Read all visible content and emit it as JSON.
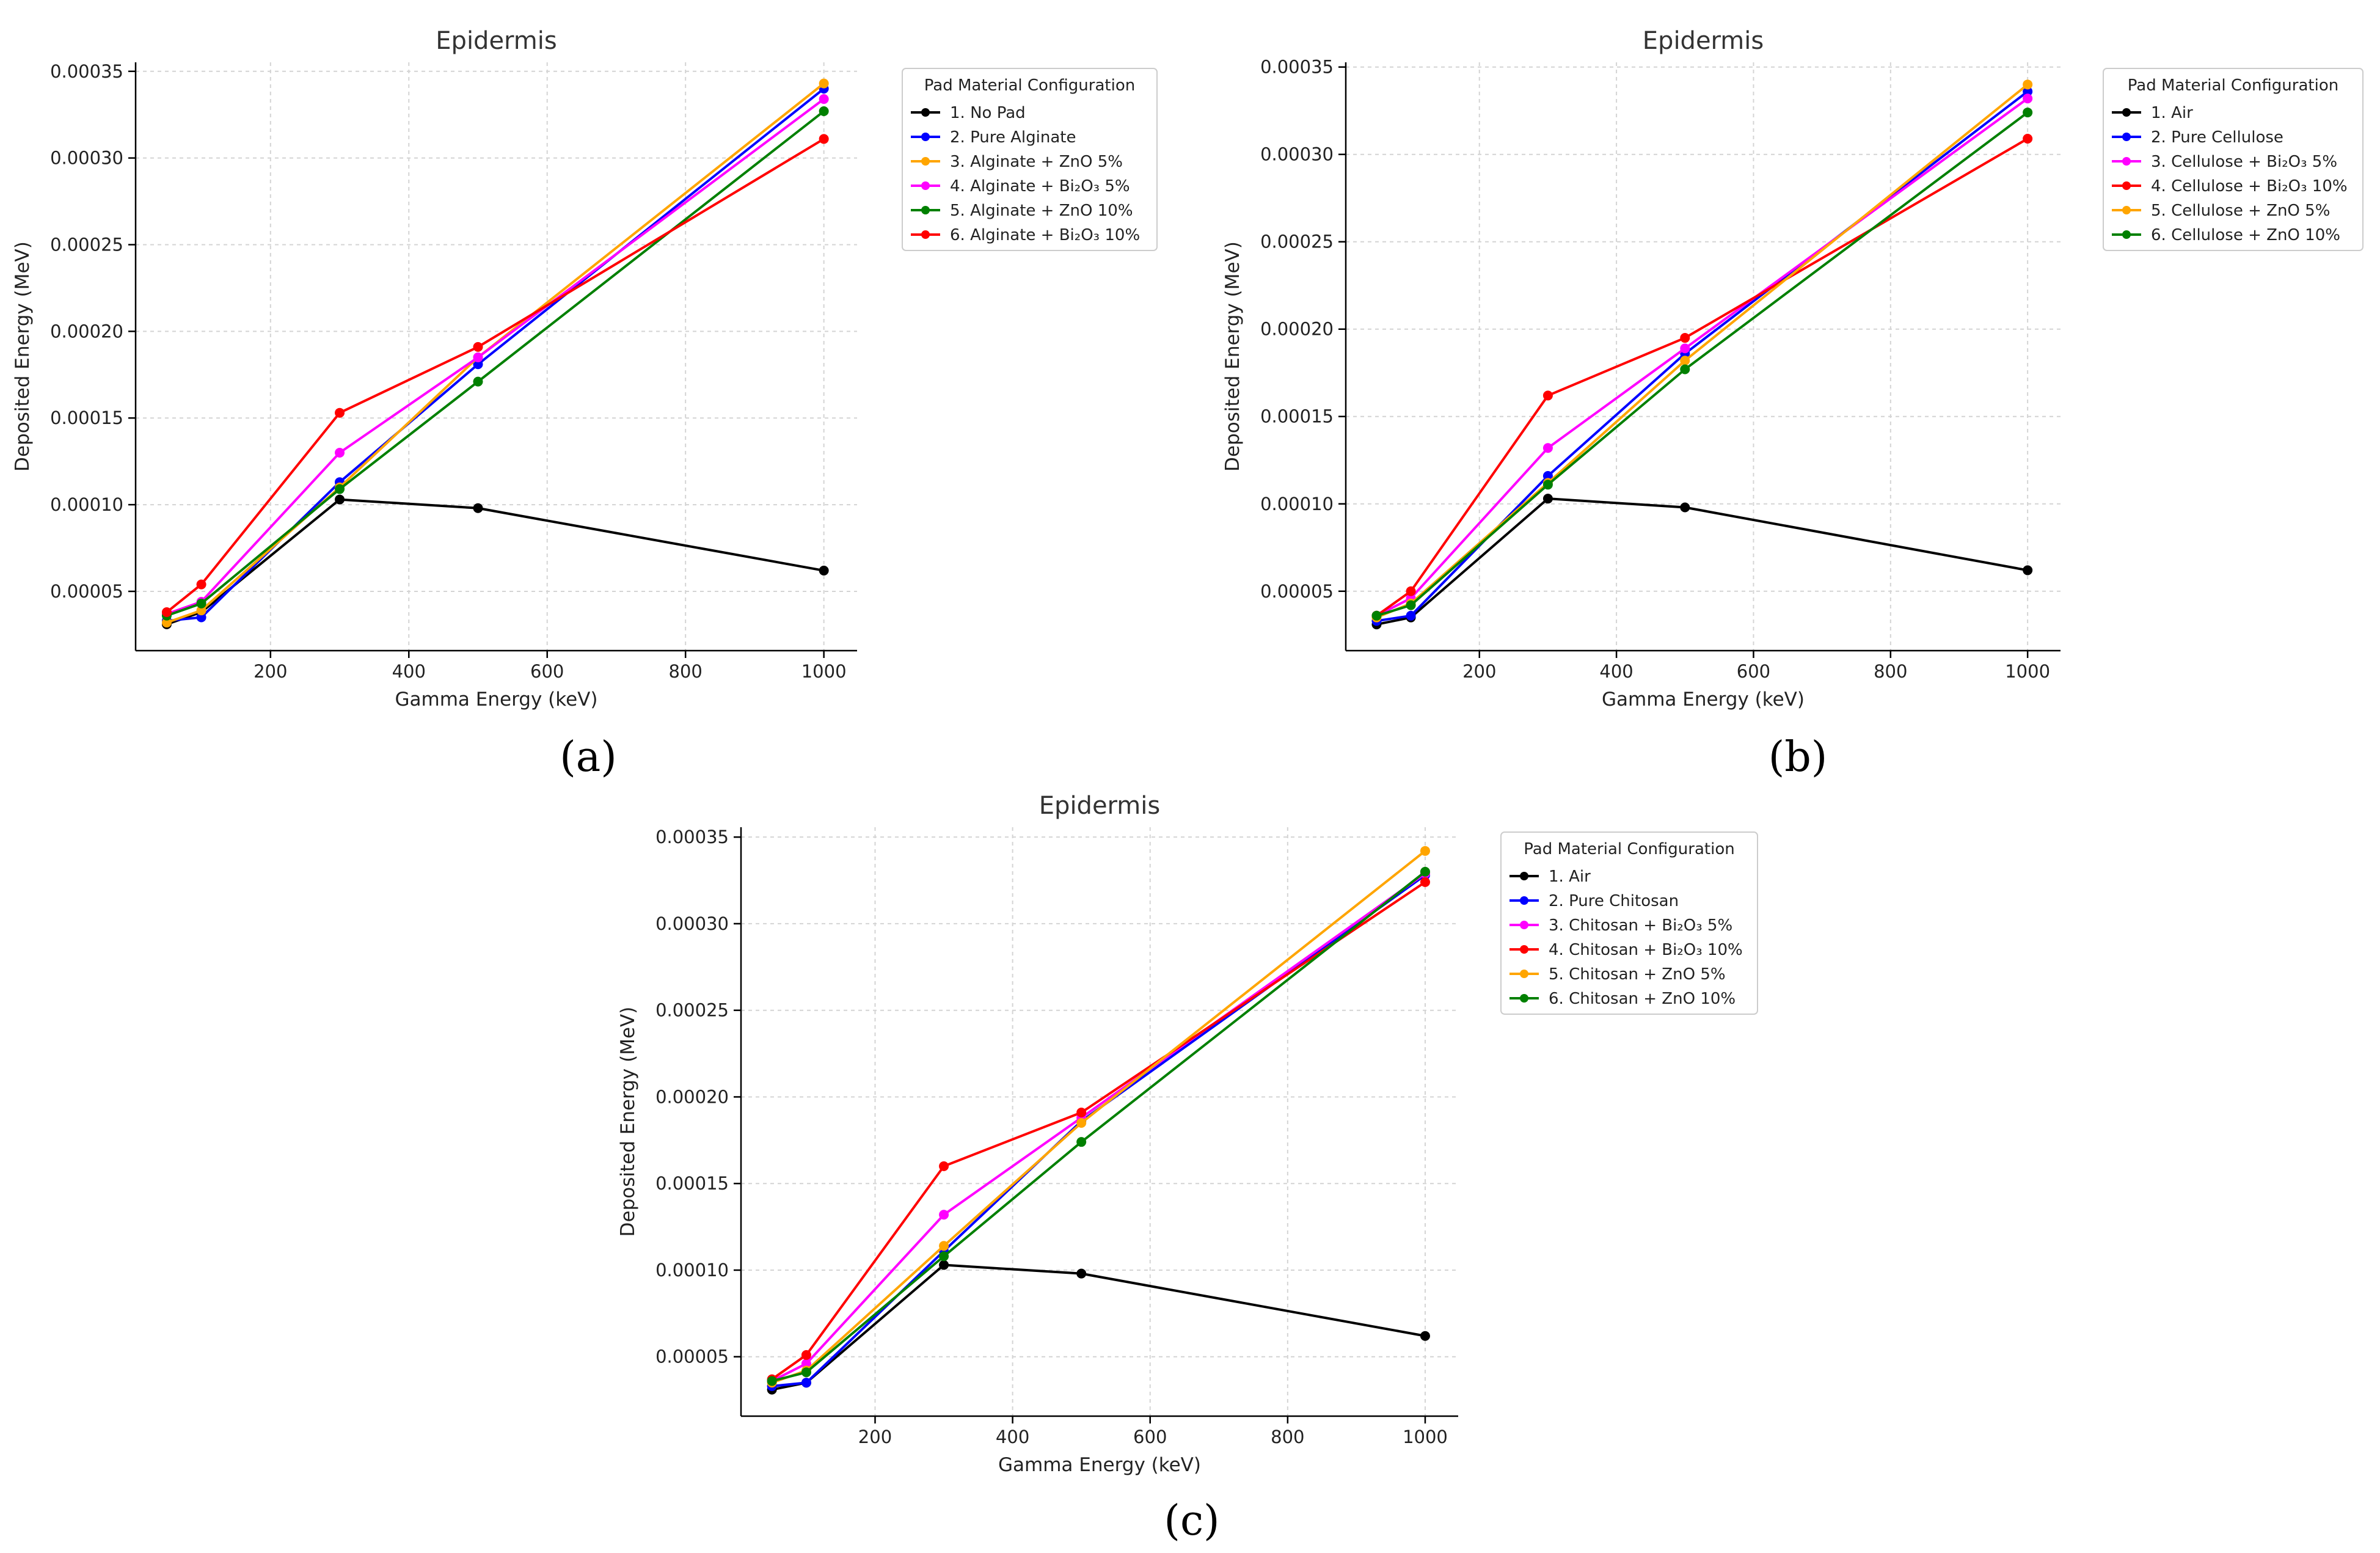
{
  "chart_data": [
    {
      "id": "a",
      "type": "line",
      "caption": "(a)",
      "title": "Epidermis",
      "xlabel": "Gamma Energy (keV)",
      "ylabel": "Deposited Energy (MeV)",
      "xlim": [
        5,
        1048
      ],
      "ylim": [
        1.58e-05,
        0.0003552
      ],
      "x_ticks": [
        200,
        400,
        600,
        800,
        1000
      ],
      "x_tick_labels": [
        "200",
        "400",
        "600",
        "800",
        "1000"
      ],
      "y_ticks": [
        5e-05,
        0.0001,
        0.00015,
        0.0002,
        0.00025,
        0.0003,
        0.00035
      ],
      "y_tick_labels": [
        "0.00005",
        "0.00010",
        "0.00015",
        "0.00020",
        "0.00025",
        "0.00030",
        "0.00035"
      ],
      "grid": true,
      "legend_title": "Pad Material Configuration",
      "legend_position": "outside-right",
      "x": [
        50,
        100,
        300,
        500,
        1000
      ],
      "series": [
        {
          "name": "1. No Pad",
          "color": "#000000",
          "values": [
            3.1e-05,
            3.8e-05,
            0.000103,
            9.8e-05,
            6.2e-05
          ]
        },
        {
          "name": "2. Pure Alginate",
          "color": "#0000ff",
          "values": [
            3.3e-05,
            3.5e-05,
            0.000113,
            0.000181,
            0.00034
          ]
        },
        {
          "name": "3. Alginate + ZnO 5%",
          "color": "#ffa500",
          "values": [
            3.2e-05,
            3.9e-05,
            0.00011,
            0.000185,
            0.000343
          ]
        },
        {
          "name": "4. Alginate + Bi₂O₃ 5%",
          "color": "#ff00ff",
          "values": [
            3.7e-05,
            4.4e-05,
            0.00013,
            0.000185,
            0.000334
          ]
        },
        {
          "name": "5. Alginate + ZnO 10%",
          "color": "#008000",
          "values": [
            3.6e-05,
            4.3e-05,
            0.000109,
            0.000171,
            0.000327
          ]
        },
        {
          "name": "6. Alginate + Bi₂O₃ 10%",
          "color": "#ff0000",
          "values": [
            3.8e-05,
            5.4e-05,
            0.000153,
            0.000191,
            0.000311
          ]
        }
      ]
    },
    {
      "id": "b",
      "type": "line",
      "caption": "(b)",
      "title": "Epidermis",
      "xlabel": "Gamma Energy (keV)",
      "ylabel": "Deposited Energy (MeV)",
      "xlim": [
        5,
        1048
      ],
      "ylim": [
        1.6e-05,
        0.0003527
      ],
      "x_ticks": [
        200,
        400,
        600,
        800,
        1000
      ],
      "x_tick_labels": [
        "200",
        "400",
        "600",
        "800",
        "1000"
      ],
      "y_ticks": [
        5e-05,
        0.0001,
        0.00015,
        0.0002,
        0.00025,
        0.0003,
        0.00035
      ],
      "y_tick_labels": [
        "0.00005",
        "0.00010",
        "0.00015",
        "0.00020",
        "0.00025",
        "0.00030",
        "0.00035"
      ],
      "grid": true,
      "legend_title": "Pad Material Configuration",
      "legend_position": "outside-right",
      "x": [
        50,
        100,
        300,
        500,
        1000
      ],
      "series": [
        {
          "name": "1. Air",
          "color": "#000000",
          "values": [
            3.1e-05,
            3.5e-05,
            0.000103,
            9.8e-05,
            6.2e-05
          ]
        },
        {
          "name": "2. Pure Cellulose",
          "color": "#0000ff",
          "values": [
            3.3e-05,
            3.6e-05,
            0.000116,
            0.000186,
            0.000336
          ]
        },
        {
          "name": "3. Cellulose + Bi₂O₃ 5%",
          "color": "#ff00ff",
          "values": [
            3.6e-05,
            4.6e-05,
            0.000132,
            0.000189,
            0.000332
          ]
        },
        {
          "name": "4. Cellulose + Bi₂O₃ 10%",
          "color": "#ff0000",
          "values": [
            3.6e-05,
            5e-05,
            0.000162,
            0.000195,
            0.000309
          ]
        },
        {
          "name": "5. Cellulose + ZnO 5%",
          "color": "#ffa500",
          "values": [
            3.5e-05,
            4.3e-05,
            0.000112,
            0.000182,
            0.00034
          ]
        },
        {
          "name": "6. Cellulose + ZnO 10%",
          "color": "#008000",
          "values": [
            3.6e-05,
            4.2e-05,
            0.000111,
            0.000177,
            0.000324
          ]
        }
      ]
    },
    {
      "id": "c",
      "type": "line",
      "caption": "(c)",
      "title": "Epidermis",
      "xlabel": "Gamma Energy (keV)",
      "ylabel": "Deposited Energy (MeV)",
      "xlim": [
        5,
        1048
      ],
      "ylim": [
        1.57e-05,
        0.0003557
      ],
      "x_ticks": [
        200,
        400,
        600,
        800,
        1000
      ],
      "x_tick_labels": [
        "200",
        "400",
        "600",
        "800",
        "1000"
      ],
      "y_ticks": [
        5e-05,
        0.0001,
        0.00015,
        0.0002,
        0.00025,
        0.0003,
        0.00035
      ],
      "y_tick_labels": [
        "0.00005",
        "0.00010",
        "0.00015",
        "0.00020",
        "0.00025",
        "0.00030",
        "0.00035"
      ],
      "grid": true,
      "legend_title": "Pad Material Configuration",
      "legend_position": "outside-right",
      "x": [
        50,
        100,
        300,
        500,
        1000
      ],
      "series": [
        {
          "name": "1. Air",
          "color": "#000000",
          "values": [
            3.1e-05,
            3.5e-05,
            0.000103,
            9.8e-05,
            6.2e-05
          ]
        },
        {
          "name": "2. Pure Chitosan",
          "color": "#0000ff",
          "values": [
            3.3e-05,
            3.5e-05,
            0.000111,
            0.000186,
            0.000328
          ]
        },
        {
          "name": "3. Chitosan + Bi₂O₃ 5%",
          "color": "#ff00ff",
          "values": [
            3.6e-05,
            4.6e-05,
            0.000132,
            0.000188,
            0.000329
          ]
        },
        {
          "name": "4. Chitosan + Bi₂O₃ 10%",
          "color": "#ff0000",
          "values": [
            3.7e-05,
            5.1e-05,
            0.00016,
            0.000191,
            0.000324
          ]
        },
        {
          "name": "5. Chitosan + ZnO 5%",
          "color": "#ffa500",
          "values": [
            3.5e-05,
            4.2e-05,
            0.000114,
            0.000185,
            0.000342
          ]
        },
        {
          "name": "6. Chitosan + ZnO 10%",
          "color": "#008000",
          "values": [
            3.6e-05,
            4.1e-05,
            0.000108,
            0.000174,
            0.00033
          ]
        }
      ]
    }
  ]
}
